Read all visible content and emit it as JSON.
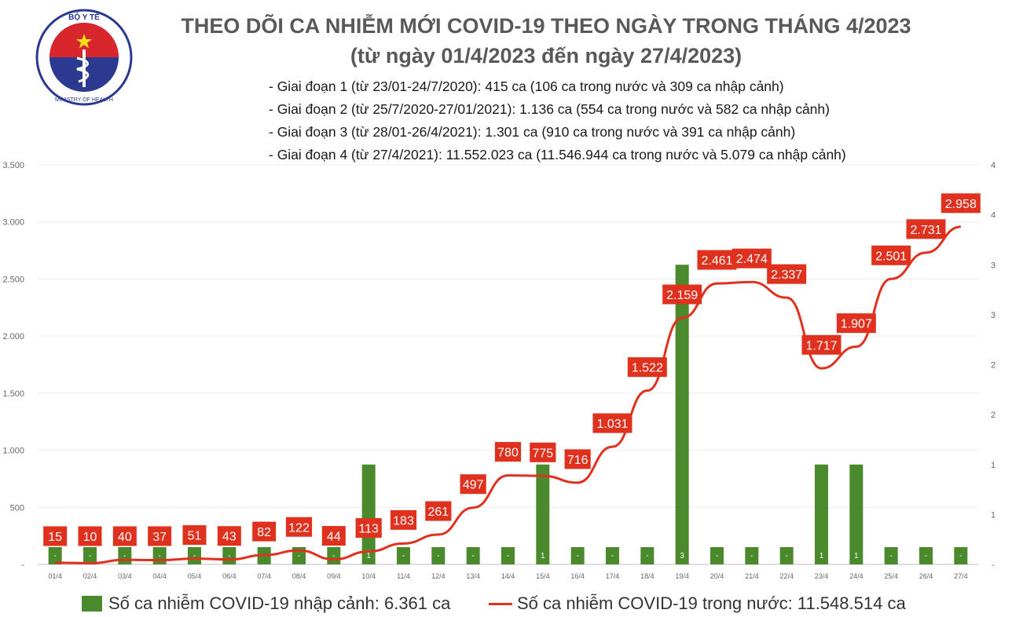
{
  "logo": {
    "top_text": "BỘ Y TẾ",
    "bottom_text": "MINISTRY OF HEALTH"
  },
  "header": {
    "title": "THEO DÕI CA NHIỄM MỚI COVID-19 THEO NGÀY TRONG THÁNG 4/2023",
    "subtitle": "(từ ngày 01/4/2023 đến ngày 27/4/2023)",
    "phases": [
      "- Giai đoạn 1 (từ 23/01-24/7/2020): 415 ca (106 ca trong nước và 309 ca nhập cảnh)",
      "- Giai đoạn 2 (từ 25/7/2020-27/01/2021): 1.136 ca (554 ca trong nước và 582 ca nhập cảnh)",
      "- Giai đoạn 3 (từ 28/01-26/4/2021): 1.301 ca (910 ca trong nước và 391 ca nhập cảnh)",
      "- Giai đoạn 4 (từ 27/4/2021): 11.552.023 ca (11.546.944 ca trong nước và 5.079 ca nhập cảnh)"
    ]
  },
  "colors": {
    "bar": "#4a8a2c",
    "line": "#e0301e",
    "label_bg": "#e0301e",
    "axis_text": "#666666"
  },
  "chart_data": {
    "type": "bar+line",
    "categories": [
      "01/4",
      "02/4",
      "03/4",
      "04/4",
      "05/4",
      "06/4",
      "07/4",
      "08/4",
      "09/4",
      "10/4",
      "11/4",
      "12/4",
      "13/4",
      "14/4",
      "15/4",
      "16/4",
      "17/4",
      "18/4",
      "19/4",
      "20/4",
      "21/4",
      "22/4",
      "23/4",
      "24/4",
      "25/4",
      "26/4",
      "27/4"
    ],
    "series": [
      {
        "name": "Số ca nhiễm COVID-19 nhập cảnh: 6.361 ca",
        "kind": "bar",
        "axis": "right",
        "values": [
          0,
          0,
          0,
          0,
          0,
          0,
          0,
          0,
          0,
          1,
          0,
          0,
          0,
          0,
          1,
          0,
          0,
          0,
          3,
          0,
          0,
          0,
          1,
          1,
          0,
          0,
          0
        ],
        "labels": [
          "-",
          "-",
          "-",
          "-",
          "-",
          "-",
          "-",
          "-",
          "-",
          "1",
          "-",
          "-",
          "-",
          "-",
          "1",
          "-",
          "-",
          "-",
          "3",
          "-",
          "-",
          "-",
          "1",
          "1",
          "-",
          "-",
          "-"
        ]
      },
      {
        "name": "Số ca nhiễm COVID-19 trong nước: 11.548.514 ca",
        "kind": "line",
        "axis": "left",
        "values": [
          15,
          10,
          40,
          37,
          51,
          43,
          82,
          122,
          44,
          113,
          183,
          261,
          497,
          780,
          775,
          716,
          1031,
          1522,
          2159,
          2461,
          2474,
          2337,
          1717,
          1907,
          2501,
          2731,
          2958
        ],
        "labels": [
          "15",
          "10",
          "40",
          "37",
          "51",
          "43",
          "82",
          "122",
          "44",
          "113",
          "183",
          "261",
          "497",
          "780",
          "775",
          "716",
          "1.031",
          "1.522",
          "2.159",
          "2.461",
          "2.474",
          "2.337",
          "1.717",
          "1.907",
          "2.501",
          "2.731",
          "2.958"
        ]
      }
    ],
    "y_left": {
      "ylim": [
        0,
        3500
      ],
      "ticks": [
        0,
        500,
        1000,
        1500,
        2000,
        2500,
        3000,
        3500
      ],
      "tick_labels": [
        "-",
        "500",
        "1.000",
        "1.500",
        "2.000",
        "2.500",
        "3.000",
        "3.500"
      ]
    },
    "y_right": {
      "ylim": [
        0,
        4
      ],
      "ticks": [
        0,
        0.5,
        1,
        1.5,
        2,
        2.5,
        3,
        3.5,
        4
      ],
      "tick_labels": [
        "-",
        "1",
        "1",
        "2",
        "2",
        "3",
        "3",
        "4",
        "4"
      ]
    },
    "grid": true,
    "legend": "bottom"
  }
}
